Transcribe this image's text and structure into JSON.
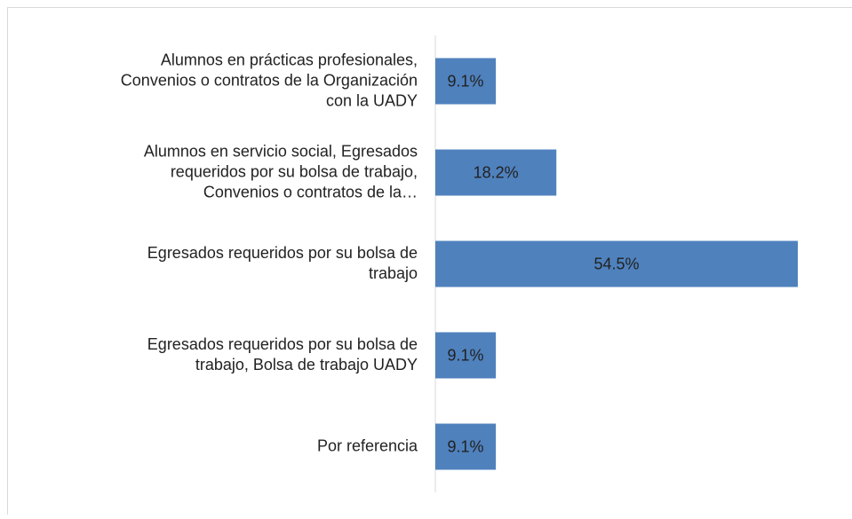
{
  "chart_data": {
    "type": "bar",
    "orientation": "horizontal",
    "categories": [
      [
        "Alumnos en prácticas profesionales,",
        "Convenios o contratos de la Organización",
        "con la UADY"
      ],
      [
        "Alumnos en servicio social, Egresados",
        "requeridos por su bolsa de trabajo,",
        "Convenios o contratos de la…"
      ],
      [
        "Egresados requeridos por su bolsa de",
        "trabajo"
      ],
      [
        "Egresados requeridos por su bolsa de",
        "trabajo, Bolsa de trabajo UADY"
      ],
      [
        "Por referencia"
      ]
    ],
    "values": [
      9.1,
      18.2,
      54.5,
      9.1,
      9.1
    ],
    "value_labels": [
      "9.1%",
      "18.2%",
      "54.5%",
      "9.1%",
      "9.1%"
    ],
    "color": "#4f81bd"
  }
}
